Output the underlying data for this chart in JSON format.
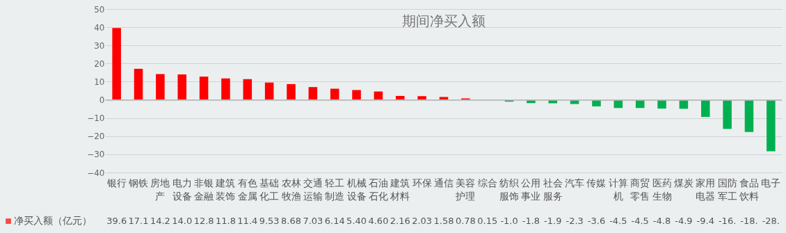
{
  "chart_data": {
    "type": "bar",
    "title": "期间净买入额",
    "categories": [
      "银行",
      "钢铁",
      "房地产",
      "电力设备",
      "非银金融",
      "建筑装饰",
      "有色金属",
      "基础化工",
      "农林牧渔",
      "交通运输",
      "轻工制造",
      "机械设备",
      "石油石化",
      "建筑材料",
      "环保",
      "通信",
      "美容护理",
      "综合",
      "纺织服饰",
      "公用事业",
      "社会服务",
      "汽车",
      "传媒",
      "计算机",
      "商贸零售",
      "医药生物",
      "煤炭",
      "家用电器",
      "国防军工",
      "食品饮料",
      "电子"
    ],
    "series": [
      {
        "name": "净买入额（亿元）",
        "color": "#ff0000",
        "colors": [
          "#ff0000",
          "#ff0000",
          "#ff0000",
          "#ff0000",
          "#ff0000",
          "#ff0000",
          "#ff0000",
          "#ff0000",
          "#ff0000",
          "#ff0000",
          "#ff0000",
          "#ff0000",
          "#ff0000",
          "#ff0000",
          "#ff0000",
          "#ff0000",
          "#ff0000",
          "#ff0000",
          "#00b050",
          "#00b050",
          "#00b050",
          "#00b050",
          "#00b050",
          "#00b050",
          "#00b050",
          "#00b050",
          "#00b050",
          "#00b050",
          "#00b050",
          "#00b050",
          "#00b050"
        ],
        "values": [
          39.6,
          17.1,
          14.2,
          14.0,
          12.8,
          11.8,
          11.4,
          9.53,
          8.68,
          7.03,
          6.14,
          5.4,
          4.6,
          2.16,
          2.03,
          1.58,
          0.78,
          0.15,
          -1.0,
          -1.8,
          -1.9,
          -2.3,
          -3.6,
          -4.5,
          -4.5,
          -4.8,
          -4.9,
          -9.4,
          -16.0,
          -17.7,
          -28.3
        ],
        "value_labels": [
          "39.6",
          "17.1",
          "14.2",
          "14.0",
          "12.8",
          "11.8",
          "11.4",
          "9.53",
          "8.68",
          "7.03",
          "6.14",
          "5.40",
          "4.60",
          "2.16",
          "2.03",
          "1.58",
          "0.78",
          "0.15",
          "-1.0",
          "-1.8",
          "-1.9",
          "-2.3",
          "-3.6",
          "-4.5",
          "-4.5",
          "-4.8",
          "-4.9",
          "-9.4",
          "-16.",
          "-18.",
          "-28."
        ]
      }
    ],
    "ylim": [
      -40,
      50
    ],
    "yticks": [
      -40,
      -30,
      -20,
      -10,
      0,
      10,
      20,
      30,
      40,
      50
    ],
    "grid": "y",
    "legend": "bottom left"
  }
}
